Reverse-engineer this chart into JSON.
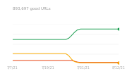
{
  "title": "893,697 good URLs",
  "title_fontsize": 4.0,
  "title_color": "#999999",
  "background_color": "#ffffff",
  "x_ticks_labels": [
    "7/7/21",
    "7/19/21",
    "7/31/21",
    "8/12/21"
  ],
  "x_ticks_pos": [
    0,
    12,
    24,
    36
  ],
  "series": {
    "green": {
      "color": "#1a9e50",
      "points": [
        [
          0,
          0.62
        ],
        [
          1,
          0.62
        ],
        [
          2,
          0.62
        ],
        [
          3,
          0.62
        ],
        [
          4,
          0.62
        ],
        [
          5,
          0.62
        ],
        [
          6,
          0.62
        ],
        [
          7,
          0.62
        ],
        [
          8,
          0.62
        ],
        [
          9,
          0.62
        ],
        [
          10,
          0.62
        ],
        [
          11,
          0.62
        ],
        [
          12,
          0.62
        ],
        [
          13,
          0.62
        ],
        [
          14,
          0.62
        ],
        [
          15,
          0.62
        ],
        [
          16,
          0.62
        ],
        [
          17,
          0.62
        ],
        [
          18,
          0.62
        ],
        [
          19,
          0.65
        ],
        [
          20,
          0.72
        ],
        [
          21,
          0.8
        ],
        [
          22,
          0.86
        ],
        [
          23,
          0.88
        ],
        [
          24,
          0.88
        ],
        [
          25,
          0.88
        ],
        [
          26,
          0.88
        ],
        [
          27,
          0.88
        ],
        [
          28,
          0.88
        ],
        [
          29,
          0.88
        ],
        [
          30,
          0.88
        ],
        [
          31,
          0.88
        ],
        [
          32,
          0.88
        ],
        [
          33,
          0.88
        ],
        [
          34,
          0.88
        ],
        [
          35,
          0.88
        ],
        [
          36,
          0.88
        ]
      ]
    },
    "orange": {
      "color": "#f9ab00",
      "points": [
        [
          0,
          0.27
        ],
        [
          1,
          0.27
        ],
        [
          2,
          0.27
        ],
        [
          3,
          0.27
        ],
        [
          4,
          0.27
        ],
        [
          5,
          0.27
        ],
        [
          6,
          0.27
        ],
        [
          7,
          0.27
        ],
        [
          8,
          0.27
        ],
        [
          9,
          0.27
        ],
        [
          10,
          0.27
        ],
        [
          11,
          0.27
        ],
        [
          12,
          0.27
        ],
        [
          13,
          0.27
        ],
        [
          14,
          0.27
        ],
        [
          15,
          0.27
        ],
        [
          16,
          0.27
        ],
        [
          17,
          0.27
        ],
        [
          18,
          0.27
        ],
        [
          19,
          0.22
        ],
        [
          20,
          0.13
        ],
        [
          21,
          0.07
        ],
        [
          22,
          0.05
        ],
        [
          23,
          0.04
        ],
        [
          24,
          0.04
        ],
        [
          25,
          0.04
        ],
        [
          26,
          0.04
        ],
        [
          27,
          0.04
        ],
        [
          28,
          0.04
        ],
        [
          29,
          0.04
        ],
        [
          30,
          0.04
        ],
        [
          31,
          0.04
        ],
        [
          32,
          0.04
        ],
        [
          33,
          0.04
        ],
        [
          34,
          0.04
        ],
        [
          35,
          0.04
        ],
        [
          36,
          0.04
        ]
      ]
    },
    "red": {
      "color": "#e8400c",
      "points": [
        [
          0,
          0.1
        ],
        [
          1,
          0.1
        ],
        [
          2,
          0.1
        ],
        [
          3,
          0.1
        ],
        [
          4,
          0.1
        ],
        [
          5,
          0.1
        ],
        [
          6,
          0.1
        ],
        [
          7,
          0.1
        ],
        [
          8,
          0.1
        ],
        [
          9,
          0.1
        ],
        [
          10,
          0.1
        ],
        [
          11,
          0.1
        ],
        [
          12,
          0.1
        ],
        [
          13,
          0.1
        ],
        [
          14,
          0.1
        ],
        [
          15,
          0.1
        ],
        [
          16,
          0.1
        ],
        [
          17,
          0.1
        ],
        [
          18,
          0.1
        ],
        [
          19,
          0.1
        ],
        [
          20,
          0.1
        ],
        [
          21,
          0.08
        ],
        [
          22,
          0.06
        ],
        [
          23,
          0.05
        ],
        [
          24,
          0.05
        ],
        [
          25,
          0.05
        ],
        [
          26,
          0.05
        ],
        [
          27,
          0.05
        ],
        [
          28,
          0.05
        ],
        [
          29,
          0.05
        ],
        [
          30,
          0.05
        ],
        [
          31,
          0.05
        ],
        [
          32,
          0.05
        ],
        [
          33,
          0.05
        ],
        [
          34,
          0.05
        ],
        [
          35,
          0.05
        ],
        [
          36,
          0.05
        ]
      ]
    }
  },
  "ylim": [
    0.0,
    1.0
  ],
  "xlim": [
    0,
    36
  ],
  "grid_color": "#e8e8e8",
  "tick_fontsize": 3.5,
  "tick_color": "#aaaaaa",
  "line_width": 0.7,
  "marker_size": 1.8
}
